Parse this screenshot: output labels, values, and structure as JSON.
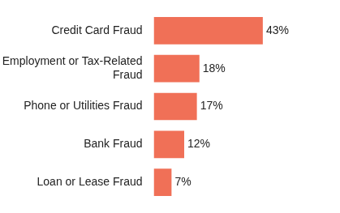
{
  "chart_data": {
    "type": "bar",
    "orientation": "horizontal",
    "categories": [
      "Credit Card Fraud",
      "Employment or Tax-Related Fraud",
      "Phone or Utilities Fraud",
      "Bank Fraud",
      "Loan or Lease Fraud"
    ],
    "values": [
      43,
      18,
      17,
      12,
      7
    ],
    "value_labels": [
      "43%",
      "18%",
      "17%",
      "12%",
      "7%"
    ],
    "color": "#f07057",
    "data_labels": true,
    "tick_labels": "y",
    "grid": false
  }
}
